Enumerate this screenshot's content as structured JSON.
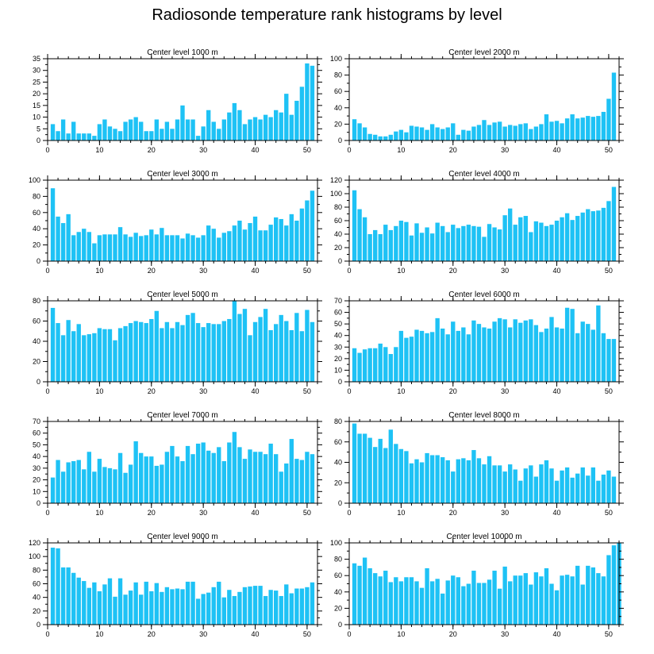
{
  "title": "Radiosonde temperature rank histograms by level",
  "colors": {
    "bar": "#1ec2f5",
    "frame": "#000000"
  },
  "chart_data": [
    {
      "type": "bar",
      "title": "Center level 1000 m",
      "ylim": [
        0,
        35
      ],
      "yticks": [
        0,
        5,
        10,
        15,
        20,
        25,
        30,
        35
      ],
      "xlim": [
        0,
        52
      ],
      "xticks": [
        0,
        10,
        20,
        30,
        40,
        50
      ],
      "x_start": 1,
      "values": [
        7,
        4,
        9,
        3,
        8,
        3,
        3,
        3,
        2,
        7,
        9,
        6,
        5,
        4,
        8,
        9,
        10,
        8,
        4,
        4,
        9,
        5,
        8,
        5,
        9,
        15,
        9,
        9,
        2,
        6,
        13,
        8,
        5,
        9,
        12,
        16,
        13,
        7,
        9,
        10,
        9,
        11,
        10,
        13,
        12,
        20,
        11,
        17,
        23,
        33,
        32
      ]
    },
    {
      "type": "bar",
      "title": "Center level 2000 m",
      "ylim": [
        0,
        100
      ],
      "yticks": [
        0,
        20,
        40,
        60,
        80,
        100
      ],
      "xlim": [
        0,
        52
      ],
      "xticks": [
        0,
        10,
        20,
        30,
        40,
        50
      ],
      "x_start": 1,
      "values": [
        26,
        21,
        16,
        8,
        7,
        5,
        5,
        7,
        11,
        13,
        10,
        18,
        17,
        16,
        13,
        20,
        16,
        14,
        16,
        21,
        7,
        13,
        12,
        17,
        19,
        25,
        19,
        22,
        23,
        17,
        19,
        18,
        20,
        21,
        14,
        17,
        20,
        32,
        23,
        24,
        21,
        27,
        32,
        27,
        28,
        30,
        29,
        30,
        35,
        51,
        83
      ]
    },
    {
      "type": "bar",
      "title": "Center level 3000 m",
      "ylim": [
        0,
        100
      ],
      "yticks": [
        0,
        20,
        40,
        60,
        80,
        100
      ],
      "xlim": [
        0,
        52
      ],
      "xticks": [
        0,
        10,
        20,
        30,
        40,
        50
      ],
      "x_start": 1,
      "values": [
        90,
        55,
        47,
        58,
        32,
        36,
        40,
        36,
        22,
        32,
        33,
        33,
        33,
        42,
        33,
        30,
        35,
        31,
        32,
        39,
        33,
        41,
        32,
        32,
        32,
        28,
        34,
        32,
        29,
        32,
        44,
        40,
        29,
        35,
        37,
        44,
        50,
        39,
        47,
        55,
        38,
        38,
        45,
        54,
        52,
        44,
        58,
        50,
        65,
        75,
        87
      ]
    },
    {
      "type": "bar",
      "title": "Center level 4000 m",
      "ylim": [
        0,
        120
      ],
      "yticks": [
        0,
        20,
        40,
        60,
        80,
        100,
        120
      ],
      "xlim": [
        0,
        52
      ],
      "xticks": [
        0,
        10,
        20,
        30,
        40,
        50
      ],
      "x_start": 1,
      "values": [
        105,
        77,
        65,
        40,
        46,
        40,
        54,
        46,
        52,
        60,
        58,
        38,
        56,
        42,
        50,
        41,
        57,
        52,
        43,
        54,
        49,
        52,
        54,
        52,
        51,
        36,
        55,
        50,
        47,
        68,
        78,
        54,
        65,
        67,
        43,
        59,
        57,
        52,
        54,
        60,
        65,
        71,
        61,
        67,
        72,
        77,
        74,
        75,
        79,
        89,
        110
      ]
    },
    {
      "type": "bar",
      "title": "Center level 5000 m",
      "ylim": [
        0,
        80
      ],
      "yticks": [
        0,
        20,
        40,
        60,
        80
      ],
      "xlim": [
        0,
        52
      ],
      "xticks": [
        0,
        10,
        20,
        30,
        40,
        50
      ],
      "x_start": 1,
      "values": [
        73,
        58,
        46,
        61,
        50,
        57,
        46,
        47,
        48,
        53,
        52,
        52,
        41,
        53,
        55,
        58,
        60,
        59,
        58,
        62,
        70,
        53,
        59,
        53,
        59,
        56,
        66,
        68,
        58,
        54,
        58,
        57,
        57,
        60,
        62,
        81,
        67,
        72,
        46,
        59,
        64,
        72,
        51,
        57,
        66,
        60,
        51,
        68,
        50,
        71,
        59
      ]
    },
    {
      "type": "bar",
      "title": "Center level 6000 m",
      "ylim": [
        0,
        70
      ],
      "yticks": [
        0,
        10,
        20,
        30,
        40,
        50,
        60,
        70
      ],
      "xlim": [
        0,
        52
      ],
      "xticks": [
        0,
        10,
        20,
        30,
        40,
        50
      ],
      "x_start": 1,
      "values": [
        29,
        25,
        28,
        29,
        29,
        33,
        30,
        24,
        30,
        44,
        38,
        39,
        45,
        44,
        42,
        43,
        55,
        46,
        41,
        52,
        44,
        47,
        41,
        53,
        50,
        47,
        46,
        52,
        55,
        54,
        47,
        54,
        51,
        53,
        54,
        49,
        43,
        46,
        56,
        47,
        46,
        64,
        63,
        42,
        52,
        50,
        45,
        66,
        42,
        37,
        37
      ]
    },
    {
      "type": "bar",
      "title": "Center level 7000 m",
      "ylim": [
        0,
        70
      ],
      "yticks": [
        0,
        10,
        20,
        30,
        40,
        50,
        60,
        70
      ],
      "xlim": [
        0,
        52
      ],
      "xticks": [
        0,
        10,
        20,
        30,
        40,
        50
      ],
      "x_start": 1,
      "values": [
        22,
        37,
        27,
        35,
        36,
        37,
        29,
        44,
        27,
        38,
        31,
        30,
        29,
        43,
        26,
        33,
        53,
        43,
        40,
        40,
        32,
        33,
        44,
        49,
        40,
        36,
        49,
        42,
        51,
        52,
        45,
        43,
        48,
        36,
        52,
        61,
        48,
        38,
        46,
        44,
        44,
        42,
        51,
        42,
        27,
        34,
        55,
        38,
        37,
        44,
        42
      ]
    },
    {
      "type": "bar",
      "title": "Center level 8000 m",
      "ylim": [
        0,
        80
      ],
      "yticks": [
        0,
        20,
        40,
        60,
        80
      ],
      "xlim": [
        0,
        52
      ],
      "xticks": [
        0,
        10,
        20,
        30,
        40,
        50
      ],
      "x_start": 1,
      "values": [
        78,
        68,
        68,
        64,
        55,
        63,
        54,
        72,
        58,
        53,
        51,
        39,
        43,
        40,
        49,
        47,
        47,
        45,
        42,
        31,
        43,
        44,
        42,
        52,
        44,
        38,
        46,
        37,
        37,
        31,
        38,
        33,
        22,
        34,
        37,
        26,
        38,
        42,
        34,
        22,
        32,
        35,
        25,
        29,
        35,
        27,
        35,
        22,
        28,
        32,
        26
      ]
    },
    {
      "type": "bar",
      "title": "Center level 9000 m",
      "ylim": [
        0,
        120
      ],
      "yticks": [
        0,
        20,
        40,
        60,
        80,
        100,
        120
      ],
      "xlim": [
        0,
        52
      ],
      "xticks": [
        0,
        10,
        20,
        30,
        40,
        50
      ],
      "x_start": 1,
      "values": [
        113,
        112,
        84,
        84,
        76,
        69,
        64,
        54,
        62,
        49,
        59,
        68,
        41,
        68,
        44,
        50,
        62,
        44,
        63,
        49,
        61,
        48,
        55,
        52,
        53,
        52,
        63,
        63,
        38,
        45,
        47,
        55,
        63,
        40,
        51,
        42,
        48,
        55,
        56,
        57,
        57,
        42,
        51,
        50,
        42,
        59,
        46,
        53,
        53,
        55,
        62
      ]
    },
    {
      "type": "bar",
      "title": "Center level 10000 m",
      "ylim": [
        0,
        100
      ],
      "yticks": [
        0,
        20,
        40,
        60,
        80,
        100
      ],
      "xlim": [
        0,
        52
      ],
      "xticks": [
        0,
        10,
        20,
        30,
        40,
        50
      ],
      "x_start": 1,
      "values": [
        75,
        72,
        82,
        69,
        63,
        59,
        66,
        52,
        58,
        53,
        58,
        58,
        53,
        45,
        69,
        53,
        56,
        38,
        54,
        60,
        58,
        47,
        50,
        66,
        51,
        51,
        55,
        66,
        44,
        71,
        53,
        60,
        60,
        63,
        49,
        64,
        59,
        69,
        50,
        42,
        60,
        61,
        59,
        72,
        49,
        72,
        70,
        63,
        59,
        85,
        97,
        100
      ]
    }
  ]
}
